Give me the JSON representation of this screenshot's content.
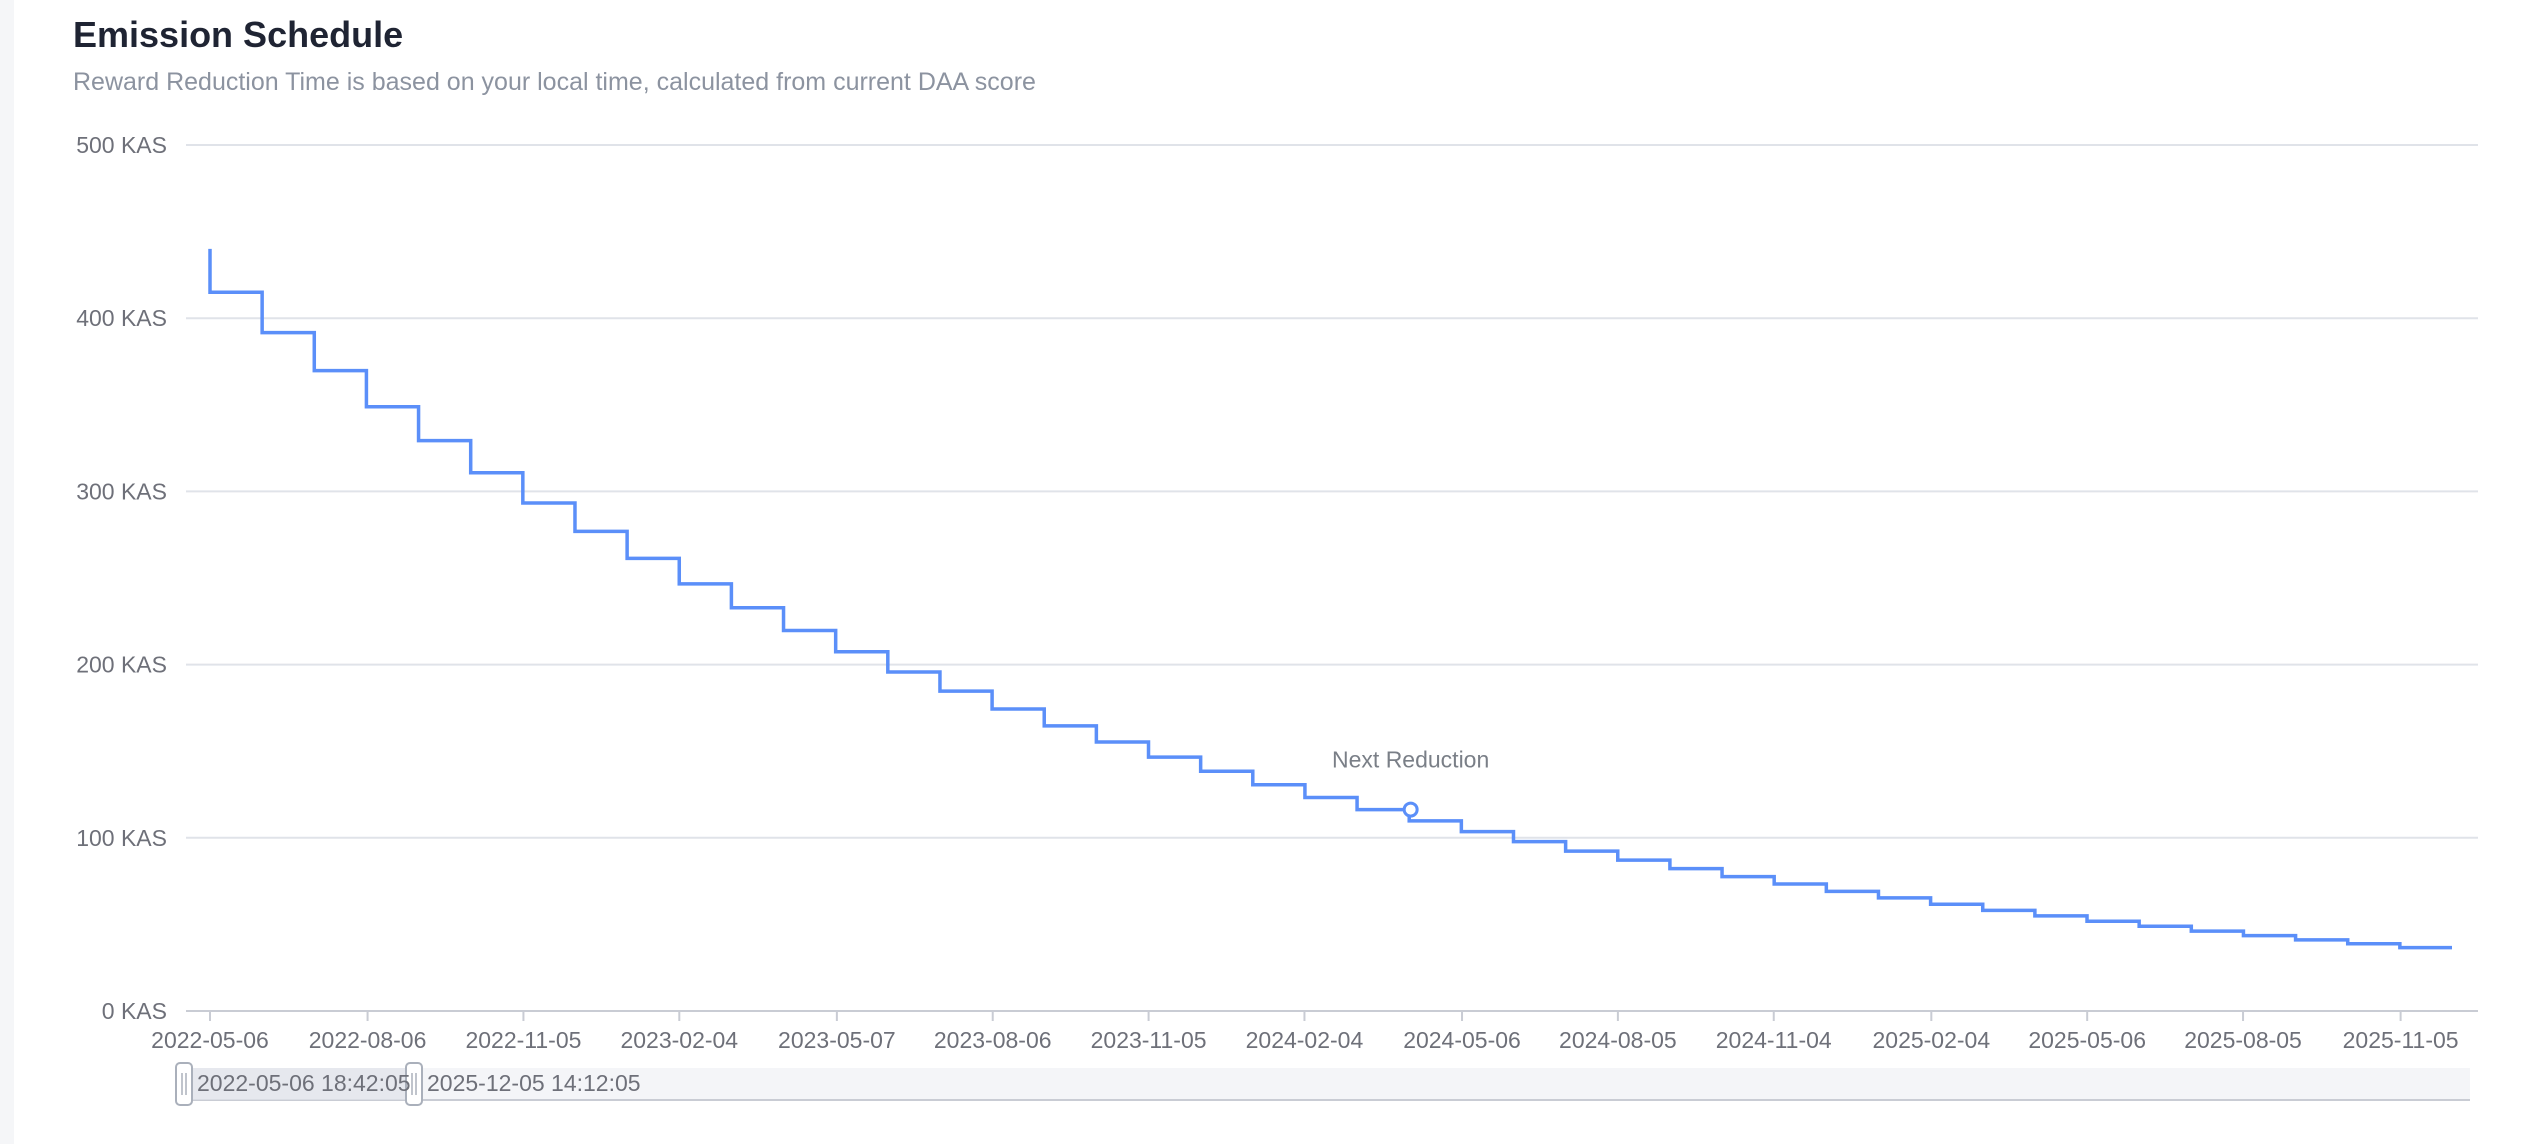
{
  "header": {
    "title": "Emission Schedule",
    "subtitle": "Reward Reduction Time is based on your local time, calculated from current DAA score"
  },
  "colors": {
    "series": "#5b8ff9",
    "grid": "#e0e3e9",
    "axis_text": "#6e7079",
    "title": "#1f2433",
    "subtitle": "#8c93a0"
  },
  "chart_data": {
    "type": "line",
    "step": true,
    "grid": true,
    "ylim": [
      0,
      500
    ],
    "yticks": [
      0,
      100,
      200,
      300,
      400,
      500
    ],
    "ytick_labels": [
      "0 KAS",
      "100 KAS",
      "200 KAS",
      "300 KAS",
      "400 KAS",
      "500 KAS"
    ],
    "x_start": "2022-05-06",
    "x_end": "2025-12-05",
    "xtick_labels": [
      "2022-05-06",
      "2022-08-06",
      "2022-11-05",
      "2023-02-04",
      "2023-05-07",
      "2023-08-06",
      "2023-11-05",
      "2024-02-04",
      "2024-05-06",
      "2024-08-05",
      "2024-11-04",
      "2025-02-04",
      "2025-05-06",
      "2025-08-05",
      "2025-11-05"
    ],
    "initial_value": 440,
    "series": [
      {
        "values": [
          415.0,
          391.7,
          369.7,
          348.9,
          329.3,
          310.8,
          293.3,
          276.9,
          261.3,
          246.6,
          232.8,
          219.7,
          207.4,
          195.7,
          184.7,
          174.4,
          164.6,
          155.3,
          146.6,
          138.4,
          130.6,
          123.3,
          116.3,
          109.8,
          103.6,
          97.8,
          92.3,
          87.1,
          82.2,
          77.6,
          73.3,
          69.1,
          65.3,
          61.6,
          58.1,
          54.9,
          51.8,
          48.9,
          46.1,
          43.5,
          41.1,
          38.8,
          36.6
        ]
      }
    ],
    "annotation": {
      "label": "Next Reduction",
      "date": "2024-04-06",
      "value": 116.3
    },
    "range_slider": {
      "start_label": "2022-05-06 18:42:05",
      "end_label": "2025-12-05 14:12:05"
    }
  }
}
